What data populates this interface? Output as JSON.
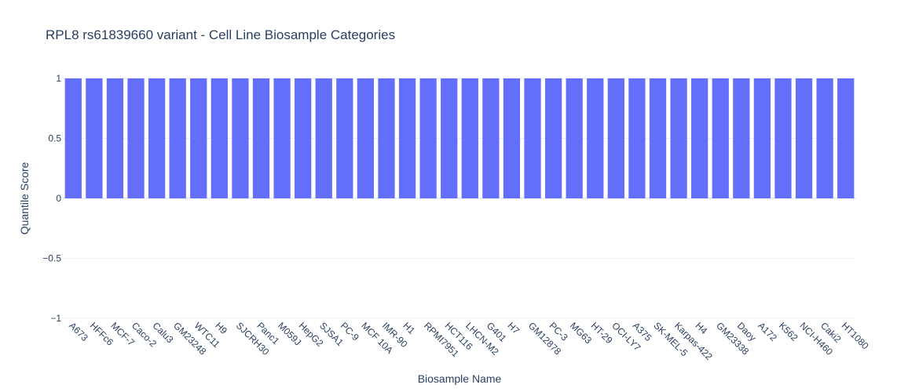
{
  "chart_data": {
    "type": "bar",
    "title": "RPL8 rs61839660 variant - Cell Line Biosample Categories",
    "xlabel": "Biosample Name",
    "ylabel": "Quantile Score",
    "ylim": [
      -1,
      1
    ],
    "yticks": [
      {
        "value": 1,
        "label": "1"
      },
      {
        "value": 0.5,
        "label": "0.5"
      },
      {
        "value": 0,
        "label": "0"
      },
      {
        "value": -0.5,
        "label": "−0.5"
      },
      {
        "value": -1,
        "label": "−1"
      }
    ],
    "grid": true,
    "bar_color": "#636efa",
    "categories": [
      "A673",
      "HFFc6",
      "MCF-7",
      "Caco-2",
      "Calu3",
      "GM23248",
      "WTC11",
      "H9",
      "SJCRH30",
      "Panc1",
      "M059J",
      "HepG2",
      "SJSA1",
      "PC-9",
      "MCF 10A",
      "IMR-90",
      "H1",
      "RPMI7951",
      "HCT116",
      "LHCN-M2",
      "G401",
      "H7",
      "GM12878",
      "PC-3",
      "MG63",
      "HT-29",
      "OCI-LY7",
      "A375",
      "SK-MEL-5",
      "Karpas-422",
      "H4",
      "GM23338",
      "Daoy",
      "A172",
      "K562",
      "NCI-H460",
      "Caki2",
      "HT1080"
    ],
    "values": [
      1,
      1,
      1,
      1,
      1,
      1,
      1,
      1,
      1,
      1,
      1,
      1,
      1,
      1,
      1,
      1,
      1,
      1,
      1,
      1,
      1,
      1,
      1,
      1,
      1,
      1,
      1,
      1,
      1,
      1,
      1,
      1,
      1,
      1,
      1,
      1,
      1,
      1
    ]
  }
}
